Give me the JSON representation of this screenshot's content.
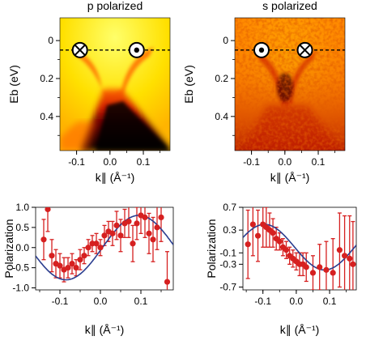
{
  "chart_data": [
    {
      "type": "heatmap",
      "title": "p polarized",
      "xlabel": "k∥ (Å⁻¹)",
      "ylabel": "Eb (eV)",
      "xlim": [
        -0.15,
        0.18
      ],
      "ylim": [
        0.58,
        -0.12
      ],
      "xticks": [
        "-0.1",
        "0.0",
        "0.1"
      ],
      "yticks": [
        "0",
        "0.2",
        "0.4"
      ],
      "fermi_level_line": 0.05,
      "markers": [
        {
          "k": -0.09,
          "E": 0.05,
          "symbol": "circle-cross",
          "icon": "circle-cross-marker-icon"
        },
        {
          "k": 0.08,
          "E": 0.05,
          "symbol": "circle-dot",
          "icon": "circle-dot-marker-icon"
        }
      ],
      "colormap": [
        "#ffff5a",
        "#ffd000",
        "#ff8a00",
        "#e02000",
        "#700000",
        "#000000"
      ]
    },
    {
      "type": "heatmap",
      "title": "s polarized",
      "xlabel": "k∥ (Å⁻¹)",
      "ylabel": "Eb (eV)",
      "xlim": [
        -0.15,
        0.18
      ],
      "ylim": [
        0.58,
        -0.12
      ],
      "xticks": [
        "-0.1",
        "0.0",
        "0.1"
      ],
      "yticks": [
        "0",
        "0.2",
        "0.4"
      ],
      "fermi_level_line": 0.05,
      "markers": [
        {
          "k": -0.07,
          "E": 0.05,
          "symbol": "circle-dot",
          "icon": "circle-dot-marker-icon"
        },
        {
          "k": 0.06,
          "E": 0.05,
          "symbol": "circle-cross",
          "icon": "circle-cross-marker-icon"
        }
      ],
      "colormap": [
        "#ffff5a",
        "#ffd000",
        "#ff8a00",
        "#e02000",
        "#700000",
        "#000000"
      ]
    },
    {
      "type": "scatter",
      "xlabel": "k∥ (Å⁻¹)",
      "ylabel": "Polarization",
      "xlim": [
        -0.16,
        0.18
      ],
      "ylim": [
        -1.05,
        1.0
      ],
      "xticks": [
        "-0.1",
        "0.0",
        "0.1"
      ],
      "yticks": [
        "1.0",
        "0.5",
        "0.0",
        "-0.5",
        "-1.0"
      ],
      "points_color": "#d62020",
      "fit_color": "#2a3d8f",
      "points": [
        {
          "x": -0.14,
          "y": 0.2,
          "err": 0.5
        },
        {
          "x": -0.13,
          "y": 0.95,
          "err": 0.55
        },
        {
          "x": -0.12,
          "y": -0.2,
          "err": 0.4
        },
        {
          "x": -0.11,
          "y": -0.4,
          "err": 0.35
        },
        {
          "x": -0.1,
          "y": -0.45,
          "err": 0.3
        },
        {
          "x": -0.09,
          "y": -0.55,
          "err": 0.3
        },
        {
          "x": -0.08,
          "y": -0.5,
          "err": 0.25
        },
        {
          "x": -0.07,
          "y": -0.4,
          "err": 0.25
        },
        {
          "x": -0.06,
          "y": -0.5,
          "err": 0.2
        },
        {
          "x": -0.05,
          "y": -0.3,
          "err": 0.25
        },
        {
          "x": -0.04,
          "y": -0.2,
          "err": 0.2
        },
        {
          "x": -0.03,
          "y": 0.0,
          "err": 0.2
        },
        {
          "x": -0.02,
          "y": 0.1,
          "err": 0.2
        },
        {
          "x": -0.01,
          "y": 0.1,
          "err": 0.25
        },
        {
          "x": 0.0,
          "y": 0.0,
          "err": 0.2
        },
        {
          "x": 0.01,
          "y": 0.3,
          "err": 0.25
        },
        {
          "x": 0.02,
          "y": 0.4,
          "err": 0.25
        },
        {
          "x": 0.03,
          "y": 0.35,
          "err": 0.3
        },
        {
          "x": 0.04,
          "y": 0.55,
          "err": 0.35
        },
        {
          "x": 0.05,
          "y": 0.3,
          "err": 0.4
        },
        {
          "x": 0.06,
          "y": 0.6,
          "err": 0.35
        },
        {
          "x": 0.07,
          "y": 0.65,
          "err": 0.4
        },
        {
          "x": 0.08,
          "y": 0.1,
          "err": 0.45
        },
        {
          "x": 0.09,
          "y": 0.6,
          "err": 0.4
        },
        {
          "x": 0.1,
          "y": 0.8,
          "err": 0.45
        },
        {
          "x": 0.11,
          "y": 0.75,
          "err": 0.5
        },
        {
          "x": 0.12,
          "y": 0.35,
          "err": 0.5
        },
        {
          "x": 0.13,
          "y": 0.2,
          "err": 0.55
        },
        {
          "x": 0.14,
          "y": 0.5,
          "err": 0.55
        },
        {
          "x": 0.15,
          "y": 0.75,
          "err": 0.6
        },
        {
          "x": 0.165,
          "y": -0.85,
          "err": 0.75
        }
      ],
      "fit": {
        "amplitude": 0.8,
        "center_k": 0.005,
        "half_period": 0.18
      }
    },
    {
      "type": "scatter",
      "xlabel": "k∥ (Å⁻¹)",
      "ylabel": "Polarization",
      "xlim": [
        -0.16,
        0.18
      ],
      "ylim": [
        -0.75,
        0.7
      ],
      "xticks": [
        "-0.1",
        "0.0",
        "0.1"
      ],
      "yticks": [
        "0.7",
        "0.3",
        "-0.1",
        "-0.3",
        "-0.7"
      ],
      "points_color": "#d62020",
      "fit_color": "#2a3d8f",
      "points": [
        {
          "x": -0.145,
          "y": 0.05,
          "err": 0.6
        },
        {
          "x": -0.13,
          "y": 0.4,
          "err": 0.55
        },
        {
          "x": -0.115,
          "y": 0.2,
          "err": 0.45
        },
        {
          "x": -0.1,
          "y": 0.4,
          "err": 0.4
        },
        {
          "x": -0.09,
          "y": 0.35,
          "err": 0.35
        },
        {
          "x": -0.08,
          "y": 0.3,
          "err": 0.3
        },
        {
          "x": -0.07,
          "y": 0.25,
          "err": 0.25
        },
        {
          "x": -0.06,
          "y": 0.15,
          "err": 0.2
        },
        {
          "x": -0.05,
          "y": 0.1,
          "err": 0.15
        },
        {
          "x": -0.04,
          "y": 0.0,
          "err": 0.15
        },
        {
          "x": -0.03,
          "y": -0.05,
          "err": 0.15
        },
        {
          "x": -0.02,
          "y": -0.15,
          "err": 0.15
        },
        {
          "x": -0.01,
          "y": -0.2,
          "err": 0.15
        },
        {
          "x": 0.0,
          "y": -0.25,
          "err": 0.15
        },
        {
          "x": 0.01,
          "y": -0.3,
          "err": 0.2
        },
        {
          "x": 0.02,
          "y": -0.3,
          "err": 0.2
        },
        {
          "x": 0.03,
          "y": -0.35,
          "err": 0.25
        },
        {
          "x": 0.05,
          "y": -0.45,
          "err": 0.3
        },
        {
          "x": 0.07,
          "y": -0.35,
          "err": 0.4
        },
        {
          "x": 0.09,
          "y": -0.4,
          "err": 0.5
        },
        {
          "x": 0.11,
          "y": -0.45,
          "err": 0.6
        },
        {
          "x": 0.13,
          "y": -0.05,
          "err": 0.65
        },
        {
          "x": 0.145,
          "y": -0.15,
          "err": 0.7
        },
        {
          "x": 0.16,
          "y": -0.2,
          "err": 0.75
        },
        {
          "x": 0.17,
          "y": -0.3,
          "err": 0.75
        }
      ],
      "fit": {
        "amplitude": -0.4,
        "center_k": -0.005,
        "half_period": 0.18
      }
    }
  ]
}
